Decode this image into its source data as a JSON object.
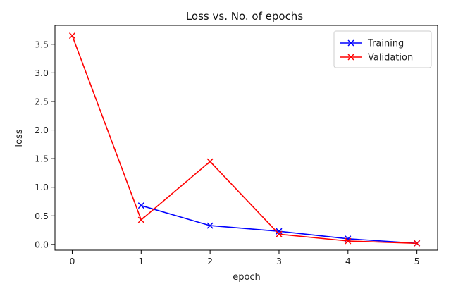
{
  "chart_data": {
    "type": "line",
    "title": "Loss vs. No. of epochs",
    "xlabel": "epoch",
    "ylabel": "loss",
    "x": [
      0,
      1,
      2,
      3,
      4,
      5
    ],
    "xlim": [
      -0.25,
      5.3
    ],
    "ylim": [
      -0.1,
      3.83
    ],
    "xticks": [
      0,
      1,
      2,
      3,
      4,
      5
    ],
    "yticks": [
      0.0,
      0.5,
      1.0,
      1.5,
      2.0,
      2.5,
      3.0,
      3.5
    ],
    "ytick_labels": [
      "0.0",
      "0.5",
      "1.0",
      "1.5",
      "2.0",
      "2.5",
      "3.0",
      "3.5"
    ],
    "grid": false,
    "legend_position": "top-right",
    "series": [
      {
        "name": "Training",
        "color": "#0000ff",
        "marker": "x",
        "x": [
          1,
          2,
          3,
          4,
          5
        ],
        "values": [
          0.68,
          0.33,
          0.23,
          0.1,
          0.02
        ]
      },
      {
        "name": "Validation",
        "color": "#ff0000",
        "marker": "x",
        "x": [
          0,
          1,
          2,
          3,
          4,
          5
        ],
        "values": [
          3.65,
          0.43,
          1.45,
          0.18,
          0.06,
          0.02
        ]
      }
    ]
  }
}
